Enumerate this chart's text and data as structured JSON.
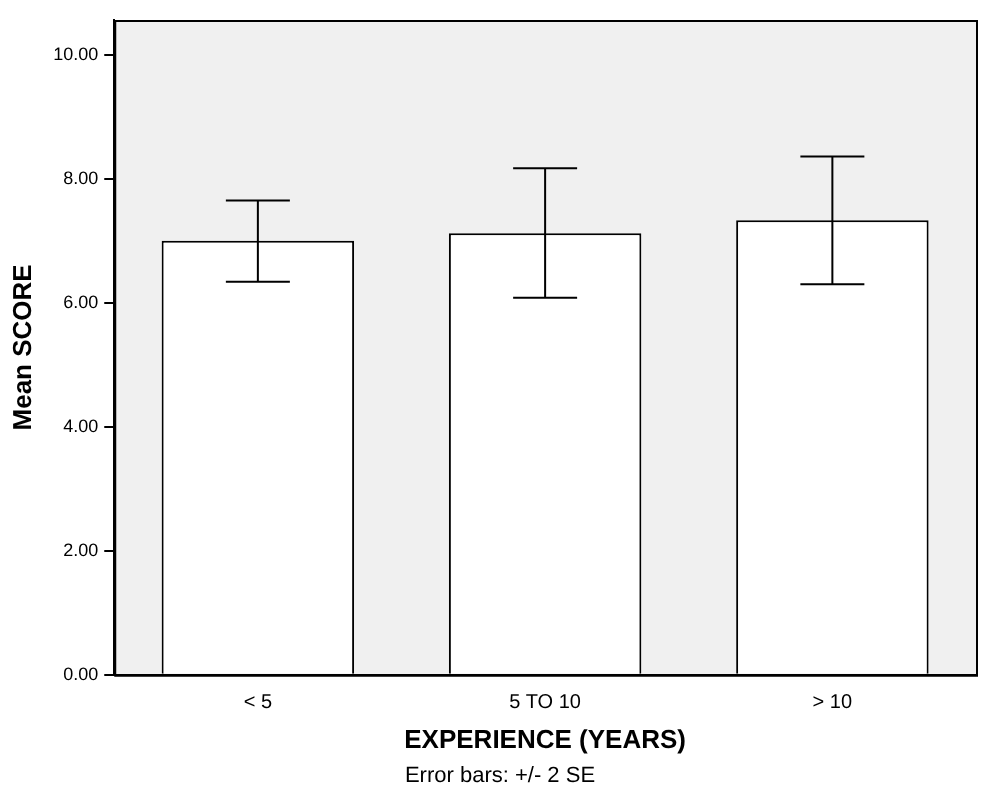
{
  "chart_data": {
    "type": "bar",
    "xlabel": "EXPERIENCE (YEARS)",
    "ylabel": "Mean SCORE",
    "categories": [
      "< 5",
      "5 TO 10",
      "> 10"
    ],
    "values": [
      7.0,
      7.12,
      7.33
    ],
    "errors": [
      [
        6.34,
        7.65
      ],
      [
        6.08,
        8.17
      ],
      [
        6.3,
        8.36
      ]
    ],
    "color": "#ffffff",
    "ylim": [
      0,
      10.56
    ],
    "yticks": [
      {
        "value": 0,
        "label": "0.00"
      },
      {
        "value": 2,
        "label": "2.00"
      },
      {
        "value": 4,
        "label": "4.00"
      },
      {
        "value": 6,
        "label": "6.00"
      },
      {
        "value": 8,
        "label": "8.00"
      },
      {
        "value": 10,
        "label": "10.00"
      }
    ],
    "grid": false,
    "legend": false,
    "annotations": [
      "Error bars: +/- 2 SE"
    ]
  }
}
